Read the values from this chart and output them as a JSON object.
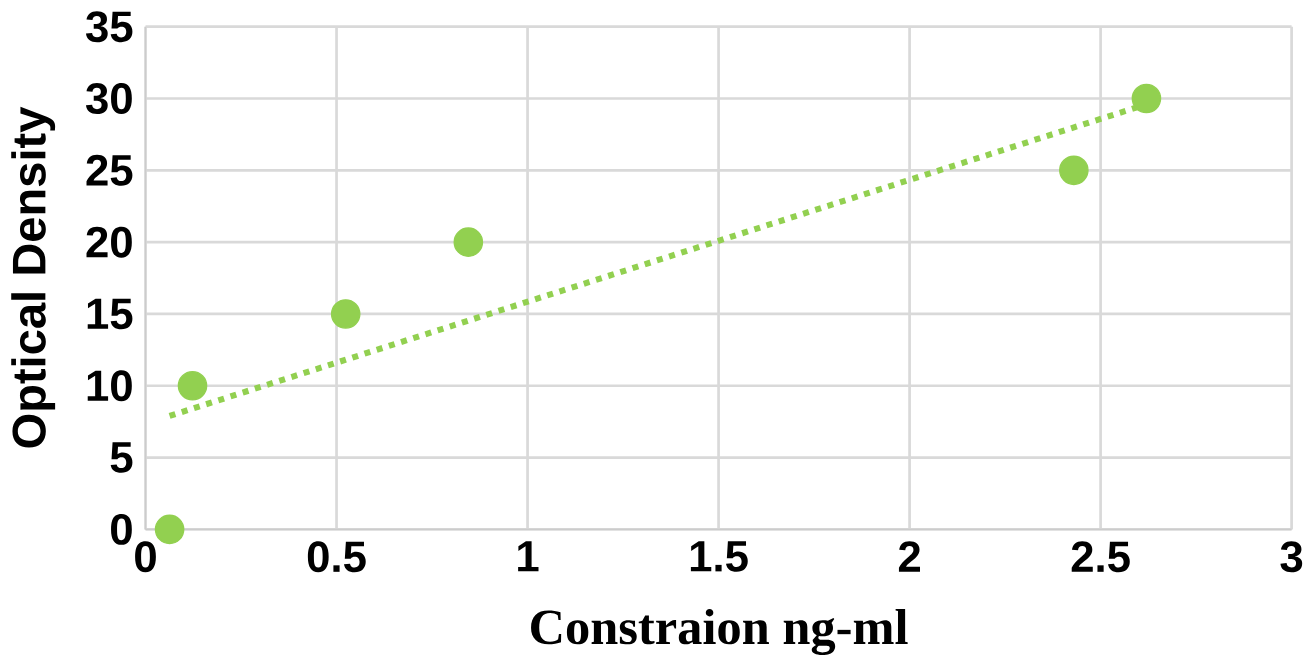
{
  "chart_data": {
    "type": "scatter",
    "xlabel": "Constraion ng-ml",
    "ylabel": "Optical Density",
    "xlim": [
      0,
      3
    ],
    "xticks": [
      0,
      0.5,
      1,
      1.5,
      2,
      2.5,
      3
    ],
    "ylim": [
      0,
      35
    ],
    "yticks": [
      0,
      5,
      10,
      15,
      20,
      25,
      30,
      35
    ],
    "grid": true,
    "marker": "circle",
    "series": [
      {
        "type": "scatter",
        "color": "#92d050",
        "x": [
          0.063,
          0.123,
          0.524,
          0.845,
          2.43,
          2.62
        ],
        "values": [
          0,
          10,
          15,
          20,
          25,
          30
        ]
      },
      {
        "type": "line",
        "color": "#92d050",
        "line_style": "dotted",
        "marker": "none",
        "x": [
          0.063,
          2.62
        ],
        "values": [
          7.9,
          29.6
        ]
      }
    ]
  }
}
